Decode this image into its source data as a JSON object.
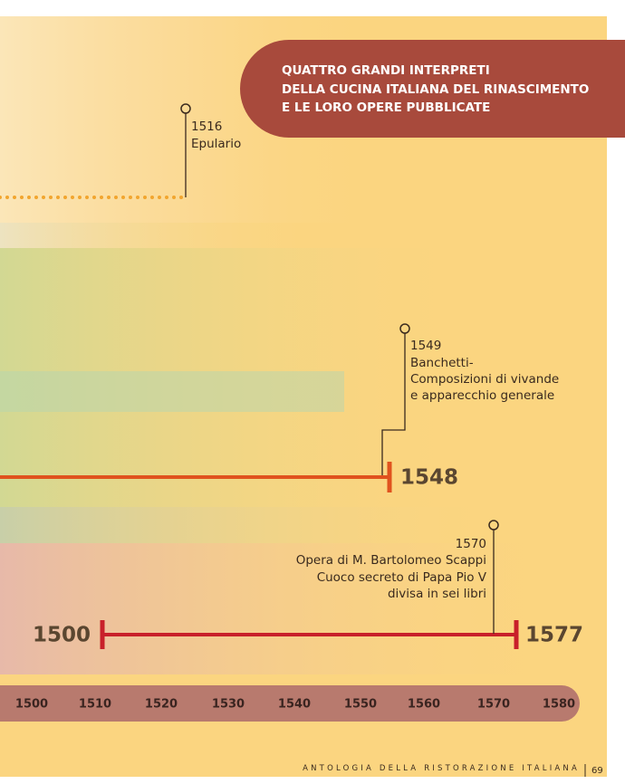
{
  "header": {
    "lines": [
      "QUATTRO GRANDI INTERPRETI",
      "DELLA CUCINA ITALIANA DEL RINASCIMENTO",
      "E LE LORO OPERE PUBBLICATE"
    ]
  },
  "events": [
    {
      "year": "1516",
      "lines": [
        "Epulario"
      ]
    },
    {
      "year": "1549",
      "lines": [
        "Banchetti-",
        "Composizioni di vivande",
        "e apparecchio generale"
      ]
    },
    {
      "year": "1570",
      "lines": [
        "Opera di M. Bartolomeo Scappi",
        "Cuoco secreto di Papa Pio V",
        "divisa in sei libri"
      ]
    }
  ],
  "ranges": [
    {
      "end": "1548"
    },
    {
      "start": "1500",
      "end": "1577"
    }
  ],
  "axis": {
    "ticks": [
      "1500",
      "1510",
      "1520",
      "1530",
      "1540",
      "1550",
      "1560",
      "1570",
      "1580"
    ]
  },
  "footer": {
    "text": "ANTOLOGIA DELLA RISTORAZIONE ITALIANA",
    "page": "69"
  }
}
